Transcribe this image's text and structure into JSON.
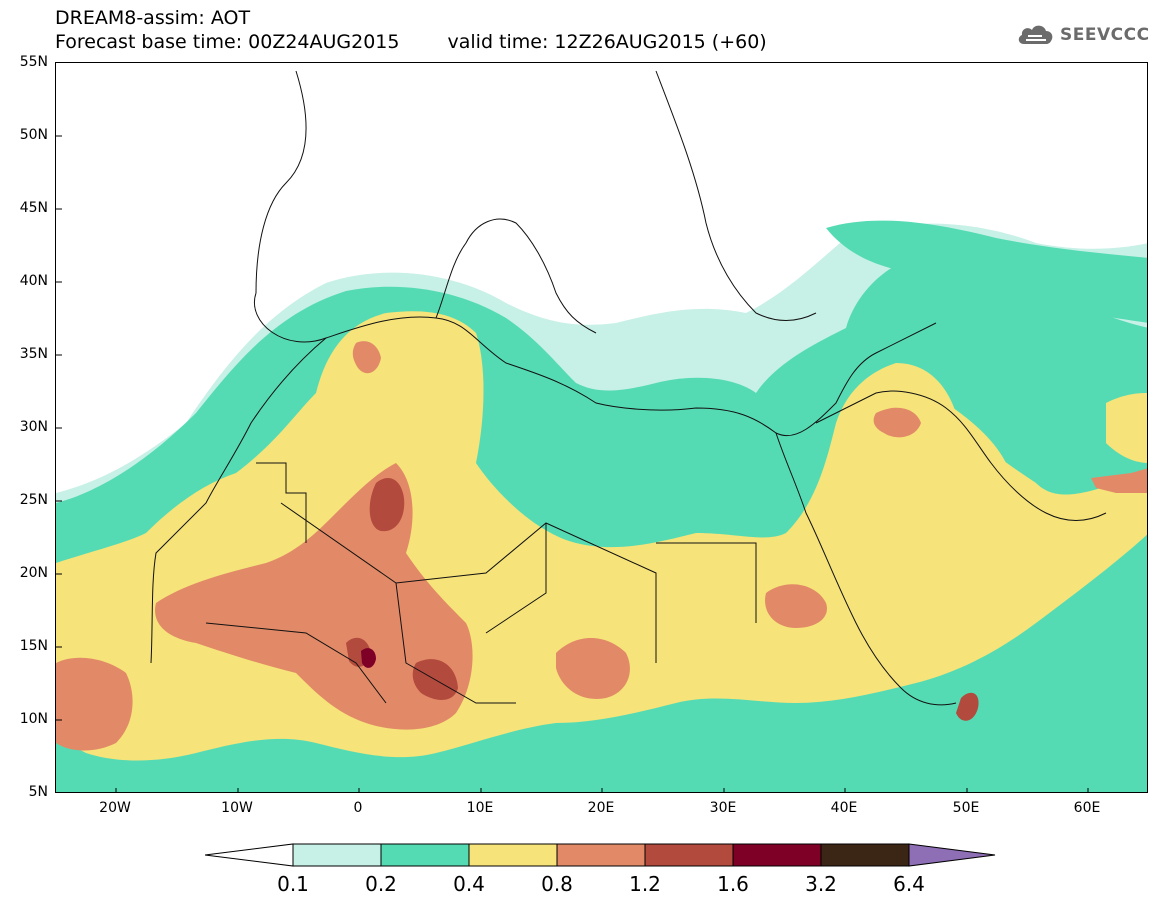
{
  "header": {
    "title": "DREAM8-assim: AOT",
    "base_time": "Forecast base time: 00Z24AUG2015",
    "valid_time": "valid time: 12Z26AUG2015 (+60)"
  },
  "logo": {
    "text": "SEEVCCC",
    "icon": "cloud-logo-icon",
    "color": "#6b6b6b"
  },
  "axes": {
    "latitude_labels": [
      "55N",
      "50N",
      "45N",
      "40N",
      "35N",
      "30N",
      "25N",
      "20N",
      "15N",
      "10N",
      "5N"
    ],
    "longitude_labels": [
      "20W",
      "10W",
      "0",
      "10E",
      "20E",
      "30E",
      "40E",
      "50E",
      "60E"
    ]
  },
  "colorbar": {
    "labels": [
      "0.1",
      "0.2",
      "0.4",
      "0.8",
      "1.2",
      "1.6",
      "3.2",
      "6.4"
    ],
    "colors": [
      "#c7f0e6",
      "#55dbb3",
      "#f6e37a",
      "#e28a67",
      "#b24a3d",
      "#7e0027",
      "#3b2514",
      "#8e6eb5"
    ]
  }
}
